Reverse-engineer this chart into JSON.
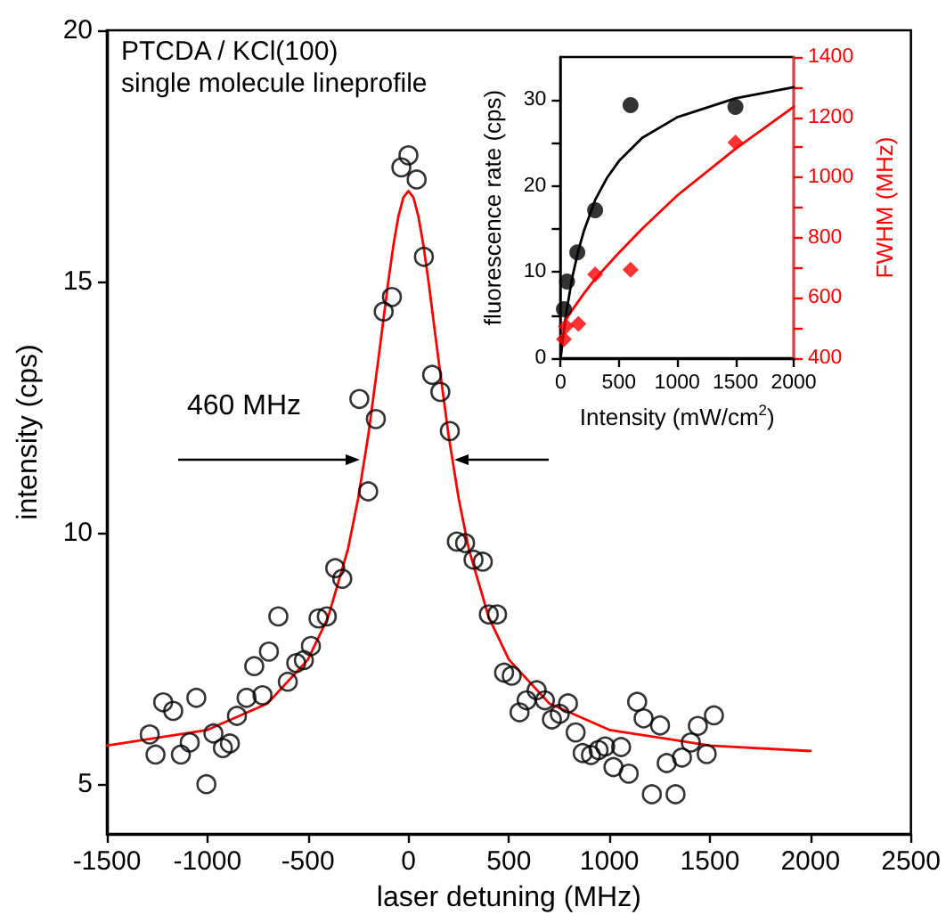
{
  "chart_data": [
    {
      "type": "scatter",
      "xlabel": "laser detuning (MHz)",
      "ylabel": "intensity (cps)",
      "annotations": [
        "PTCDA / KCl(100)",
        "single molecule lineprofile",
        "460 MHz"
      ],
      "xlim": [
        -1500,
        2500
      ],
      "xticks": [
        -1500,
        -1000,
        -500,
        0,
        500,
        1000,
        1500,
        2000,
        2500
      ],
      "ylim": [
        4,
        20
      ],
      "yticks": [
        5,
        10,
        15,
        20
      ],
      "grid": false,
      "legend": false,
      "series": [
        {
          "marker": "circle",
          "color": "#000000",
          "x": [
            -1287,
            -1258,
            -1220,
            -1170,
            -1132,
            -1088,
            -1055,
            -1005,
            -970,
            -923,
            -888,
            -853,
            -805,
            -767,
            -726,
            -694,
            -647,
            -600,
            -558,
            -520,
            -485,
            -447,
            -406,
            -364,
            -329,
            -244,
            -200,
            -162,
            -123,
            -82,
            -35,
            0,
            41,
            77,
            118,
            159,
            206,
            241,
            282,
            324,
            370,
            400,
            441,
            476,
            514,
            553,
            588,
            638,
            679,
            714,
            753,
            794,
            832,
            867,
            908,
            946,
            979,
            1020,
            1058,
            1096,
            1138,
            1170,
            1211,
            1252,
            1285,
            1329,
            1361,
            1405,
            1440,
            1484,
            1520
          ],
          "values": [
            5.98,
            5.58,
            6.62,
            6.45,
            5.58,
            5.82,
            6.71,
            4.99,
            6.0,
            5.71,
            5.8,
            6.35,
            6.71,
            7.34,
            6.76,
            7.63,
            8.33,
            7.03,
            7.4,
            7.46,
            7.74,
            8.29,
            8.33,
            9.29,
            9.08,
            12.66,
            10.82,
            12.26,
            14.4,
            14.69,
            17.27,
            17.51,
            17.03,
            15.49,
            13.14,
            12.8,
            12.02,
            9.82,
            9.79,
            9.46,
            9.42,
            8.37,
            8.37,
            7.21,
            7.15,
            6.42,
            6.66,
            6.86,
            6.66,
            6.28,
            6.39,
            6.6,
            6.02,
            5.61,
            5.57,
            5.67,
            5.74,
            5.33,
            5.73,
            5.2,
            6.63,
            6.3,
            4.79,
            6.16,
            5.41,
            4.79,
            5.52,
            5.82,
            6.15,
            5.59,
            6.36
          ]
        },
        {
          "type": "line",
          "marker": "none",
          "line_style": "solid",
          "color": "#ff0000",
          "x": [
            -1500,
            -1000,
            -700,
            -500,
            -400,
            -300,
            -250,
            -200,
            -150,
            -100,
            -75,
            -50,
            -25,
            0,
            25,
            50,
            75,
            100,
            150,
            200,
            250,
            300,
            400,
            500,
            700,
            1000,
            1500,
            2000
          ],
          "values": [
            5.76,
            6.07,
            6.6,
            7.47,
            8.31,
            9.68,
            10.68,
            11.93,
            13.43,
            15.0,
            15.71,
            16.29,
            16.67,
            16.8,
            16.67,
            16.29,
            15.71,
            15.0,
            13.43,
            11.93,
            10.68,
            9.68,
            8.31,
            7.47,
            6.6,
            6.07,
            5.76,
            5.65
          ]
        }
      ]
    },
    {
      "type": "scatter",
      "xlabel": "Intensity (mW/cm$^{2}$)",
      "ylabel": "fluorescence rate (cps)",
      "y2label": "FWHM (MHz)",
      "xlim": [
        0,
        2000
      ],
      "xticks": [
        0,
        500,
        1000,
        1500,
        2000
      ],
      "ylim": [
        0,
        35
      ],
      "yticks": [
        0,
        {
          "value": 5,
          "label": null
        },
        10,
        {
          "value": 15,
          "label": null
        },
        20,
        {
          "value": 25,
          "label": null
        },
        30
      ],
      "y2lim": [
        400,
        1400
      ],
      "y2ticks": [
        400,
        {
          "value": 500,
          "label": null
        },
        600,
        {
          "value": 700,
          "label": null
        },
        800,
        {
          "value": 900,
          "label": null
        },
        1000,
        {
          "value": 1100,
          "label": null
        },
        1200,
        {
          "value": 1300,
          "label": null
        },
        1400
      ],
      "grid": false,
      "legend": false,
      "series": [
        {
          "marker": "circle",
          "color": "#000000",
          "x": [
            28,
            55,
            143,
            296,
            600,
            1500
          ],
          "values": [
            5.7,
            8.9,
            12.3,
            17.2,
            29.4,
            29.2
          ]
        },
        {
          "type": "line",
          "marker": "none",
          "line_style": "solid",
          "color": "#000000",
          "x": [
            0,
            25,
            50,
            100,
            150,
            200,
            300,
            400,
            500,
            700,
            1000,
            1500,
            2000
          ],
          "values": [
            0,
            2.9,
            5.4,
            9.4,
            12.4,
            14.8,
            18.5,
            21.0,
            22.9,
            25.6,
            28.0,
            30.2,
            31.5
          ]
        },
        {
          "marker": "diamond",
          "axis": "y2",
          "color": "#ff0000",
          "x": [
            28,
            46,
            152,
            296,
            600,
            1500
          ],
          "values": [
            463,
            506,
            514,
            678,
            694,
            1116
          ]
        },
        {
          "type": "line",
          "marker": "none",
          "line_style": "solid",
          "axis": "y2",
          "color": "#ff0000",
          "x": [
            50,
            100,
            200,
            300,
            500,
            700,
            1000,
            1500,
            2000
          ],
          "values": [
            530,
            560,
            615,
            665,
            750,
            830,
            940,
            1095,
            1235
          ]
        }
      ]
    }
  ]
}
